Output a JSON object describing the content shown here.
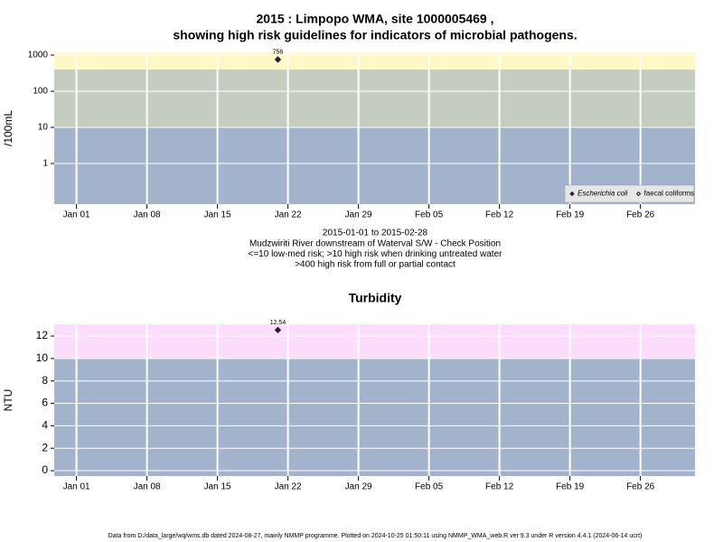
{
  "chart_data": [
    {
      "type": "scatter",
      "title": "2015 : Limpopo WMA, site 1000005469 ,",
      "subtitle": "showing high risk guidelines for indicators of microbial pathogens.",
      "y_label": "/100mL",
      "notes": [
        "2015-01-01 to 2015-02-28",
        "Mudzwiriti River downstream of Waterval S/W - Check Position",
        "<=10 low-med risk; >10 high risk when drinking untreated water",
        ">400 high risk from full or partial contact"
      ],
      "log_scale": true,
      "ylim": [
        0.075,
        1190
      ],
      "yticks": [
        1,
        10,
        100,
        1000
      ],
      "xlim": [
        "2014-12-29T19:00:00Z",
        "2015-03-03T10:00:00Z"
      ],
      "xticks": [
        {
          "value": "2015-01-01",
          "label": "Jan 01"
        },
        {
          "value": "2015-01-08",
          "label": "Jan 08"
        },
        {
          "value": "2015-01-15",
          "label": "Jan 15"
        },
        {
          "value": "2015-01-22",
          "label": "Jan 22"
        },
        {
          "value": "2015-01-29",
          "label": "Jan 29"
        },
        {
          "value": "2015-02-05",
          "label": "Feb 05"
        },
        {
          "value": "2015-02-12",
          "label": "Feb 12"
        },
        {
          "value": "2015-02-19",
          "label": "Feb 19"
        },
        {
          "value": "2015-02-26",
          "label": "Feb 26"
        }
      ],
      "thresholds": [
        10,
        400
      ],
      "band_colors": [
        "#a3b3cc",
        "#c5ccc0",
        "#fdf8c6"
      ],
      "grid": true,
      "legend": "lower right",
      "x": [
        "2015-01-21"
      ],
      "series": [
        {
          "name": "Escherichia coli",
          "color": "#222222",
          "marker": "filled",
          "values": [
            756
          ]
        },
        {
          "name": "faecal coliforms",
          "color": "#222222",
          "marker": "open",
          "values": [
            null
          ]
        }
      ]
    },
    {
      "type": "scatter",
      "title": "Turbidity",
      "y_label": "NTU",
      "log_scale": false,
      "ylim": [
        -0.48,
        13.05
      ],
      "yticks": [
        0,
        2,
        4,
        6,
        8,
        10,
        12
      ],
      "xlim": [
        "2014-12-29T19:00:00Z",
        "2015-03-03T10:00:00Z"
      ],
      "xticks": [
        {
          "value": "2015-01-01",
          "label": "Jan 01"
        },
        {
          "value": "2015-01-08",
          "label": "Jan 08"
        },
        {
          "value": "2015-01-15",
          "label": "Jan 15"
        },
        {
          "value": "2015-01-22",
          "label": "Jan 22"
        },
        {
          "value": "2015-01-29",
          "label": "Jan 29"
        },
        {
          "value": "2015-02-05",
          "label": "Feb 05"
        },
        {
          "value": "2015-02-12",
          "label": "Feb 12"
        },
        {
          "value": "2015-02-19",
          "label": "Feb 19"
        },
        {
          "value": "2015-02-26",
          "label": "Feb 26"
        }
      ],
      "thresholds": [
        10
      ],
      "band_colors": [
        "#a3b3cc",
        "#fcdcfc"
      ],
      "grid": true,
      "x": [
        "2015-01-21"
      ],
      "series": [
        {
          "color": "#222222",
          "marker": "filled",
          "values": [
            12.54
          ]
        }
      ]
    }
  ],
  "footer": "Data from D:/data_large/wq/wms.db dated 2024-08-27, mainly NMMP programme. Plotted on 2024-10-25 01:50:11 using NMMP_WMA_web.R ver 9.3 under R version 4.4.1 (2024-06-14 ucrt)"
}
